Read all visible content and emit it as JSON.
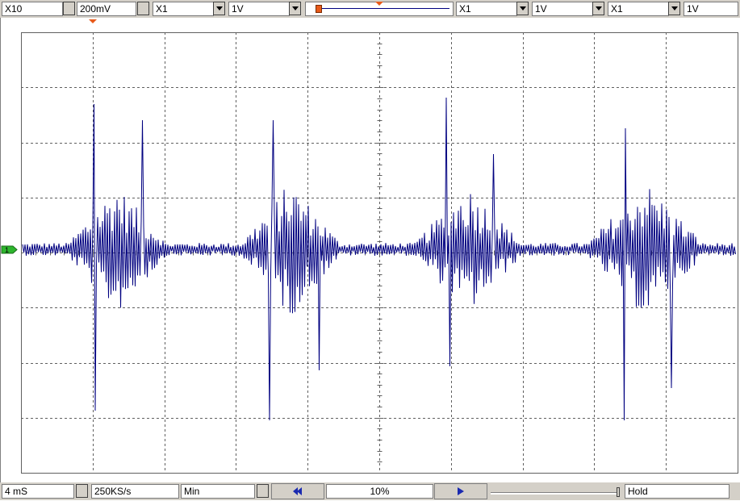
{
  "top": {
    "probe": "X10",
    "volts_div": "200mV",
    "ch_a": {
      "mult": "X1",
      "volts": "1V"
    },
    "ch_b": {
      "mult": "X1",
      "volts": "1V"
    },
    "ch_c": {
      "mult": "X1",
      "volts": "1V"
    }
  },
  "bottom": {
    "timebase": "4 mS",
    "sample_rate": "250KS/s",
    "mode": "Min",
    "percent": "10%",
    "state": "Hold"
  },
  "channel_marker": "1",
  "colors": {
    "trace": "#000080",
    "grid": "#606060",
    "marker": "#2db52d",
    "accent": "#e85a1a"
  },
  "icons": {
    "prev": "double-left-arrow-icon",
    "next": "right-arrow-icon"
  }
}
